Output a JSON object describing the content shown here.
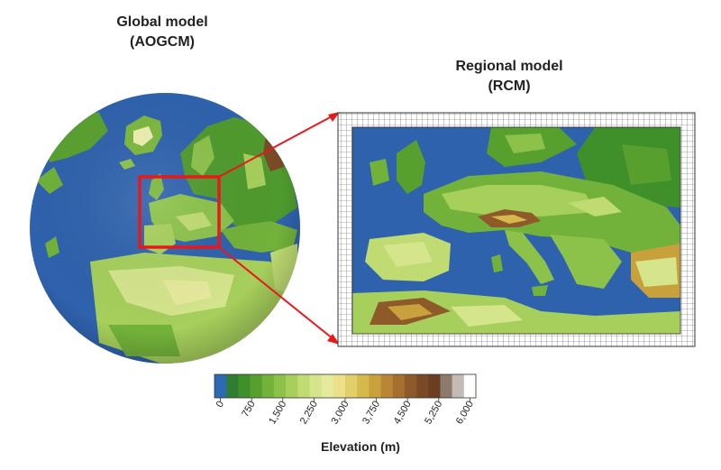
{
  "global_model": {
    "title_line1": "Global model",
    "title_line2": "(AOGCM)"
  },
  "regional_model": {
    "title_line1": "Regional model",
    "title_line2": "(RCM)"
  },
  "colorbar": {
    "label": "Elevation (m)",
    "ticks": [
      "0",
      "750",
      "1,500",
      "2,250",
      "3,000",
      "3,750",
      "4,500",
      "5,250",
      "6,000"
    ],
    "colors": [
      "#2d6ab4",
      "#2e7d32",
      "#3f8f2a",
      "#58a02e",
      "#72b23a",
      "#8cc24a",
      "#a6cf5c",
      "#bfdb72",
      "#d5e58c",
      "#e6ea9c",
      "#ece08a",
      "#e2cf6a",
      "#d6b94c",
      "#c9a13c",
      "#b98734",
      "#a66f2e",
      "#8f5a2a",
      "#7a4a26",
      "#6b3e22",
      "#8c7a6c",
      "#c4bcb4",
      "#ffffff"
    ]
  },
  "colors": {
    "ocean": "#2f62ad",
    "highlight_box": "#e8191b",
    "grid_line": "#555555"
  }
}
